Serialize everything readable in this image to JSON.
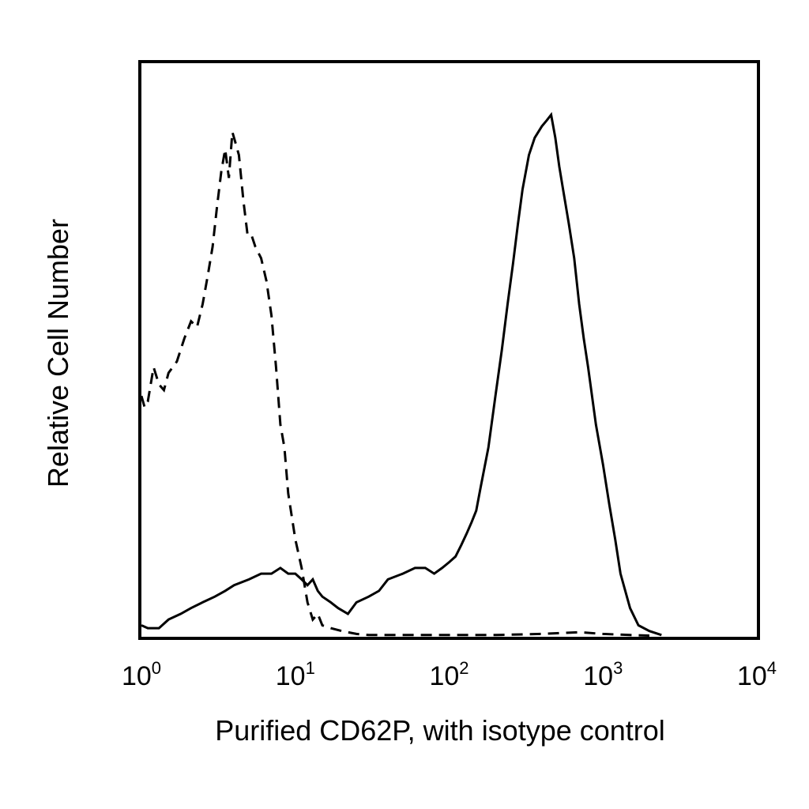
{
  "chart_data": {
    "type": "line",
    "xlabel": "Purified CD62P, with isotype control",
    "ylabel": "Relative Cell Number",
    "x_scale": "log",
    "xlim": [
      1,
      10000
    ],
    "ylim": [
      0,
      100
    ],
    "x_ticks": [
      {
        "base": "10",
        "exp": "0",
        "value": 1
      },
      {
        "base": "10",
        "exp": "1",
        "value": 10
      },
      {
        "base": "10",
        "exp": "2",
        "value": 100
      },
      {
        "base": "10",
        "exp": "3",
        "value": 1000
      },
      {
        "base": "10",
        "exp": "4",
        "value": 10000
      }
    ],
    "grid": false,
    "legend": "none",
    "series": [
      {
        "style": "dashed",
        "color": "#000000",
        "x": [
          1.0,
          1.05,
          1.1,
          1.2,
          1.3,
          1.4,
          1.5,
          1.7,
          1.9,
          2.1,
          2.3,
          2.5,
          2.7,
          2.9,
          3.1,
          3.3,
          3.5,
          3.7,
          3.9,
          4.1,
          4.3,
          4.6,
          4.9,
          5.2,
          5.5,
          6.0,
          6.5,
          7.0,
          7.5,
          8.0,
          8.5,
          9.0,
          10,
          11,
          12,
          13,
          14,
          15,
          17,
          20,
          25,
          30,
          40,
          60,
          100,
          200,
          400,
          700,
          1000,
          1500,
          2000
        ],
        "y": [
          42,
          40,
          41,
          47,
          44,
          43,
          46,
          48,
          52,
          55,
          54,
          58,
          63,
          68,
          75,
          81,
          85,
          80,
          88,
          86,
          84,
          76,
          70,
          70,
          68,
          66,
          62,
          56,
          47,
          37,
          33,
          25,
          17,
          12,
          6,
          3,
          4,
          2,
          1.5,
          1,
          0.5,
          0.3,
          0.3,
          0.3,
          0.3,
          0.3,
          0.5,
          0.8,
          0.5,
          0.3,
          0.2
        ]
      },
      {
        "style": "solid",
        "color": "#000000",
        "x": [
          1.0,
          1.1,
          1.3,
          1.5,
          1.8,
          2.1,
          2.5,
          3.0,
          3.5,
          4.0,
          5.0,
          6.0,
          7.0,
          8.0,
          9.0,
          10,
          11,
          12,
          13,
          14,
          15,
          17,
          19,
          22,
          25,
          30,
          35,
          40,
          50,
          60,
          70,
          80,
          90,
          100,
          110,
          120,
          130,
          140,
          150,
          160,
          180,
          200,
          220,
          240,
          260,
          280,
          300,
          330,
          360,
          400,
          430,
          460,
          490,
          520,
          550,
          600,
          650,
          700,
          750,
          800,
          900,
          1000,
          1100,
          1200,
          1300,
          1500,
          1700,
          2000,
          2400
        ],
        "y": [
          2,
          1.5,
          1.5,
          3,
          4,
          5,
          6,
          7,
          8,
          9,
          10,
          11,
          11,
          12,
          11,
          11,
          10,
          9,
          10,
          8,
          7,
          6,
          5,
          4,
          6,
          7,
          8,
          10,
          11,
          12,
          12,
          11,
          12,
          13,
          14,
          16,
          18,
          20,
          22,
          26,
          33,
          42,
          50,
          58,
          65,
          72,
          78,
          84,
          87,
          89,
          90,
          91,
          87,
          82,
          78,
          72,
          66,
          58,
          52,
          47,
          37,
          30,
          23,
          17,
          11,
          5,
          2,
          1,
          0.3
        ]
      }
    ]
  }
}
